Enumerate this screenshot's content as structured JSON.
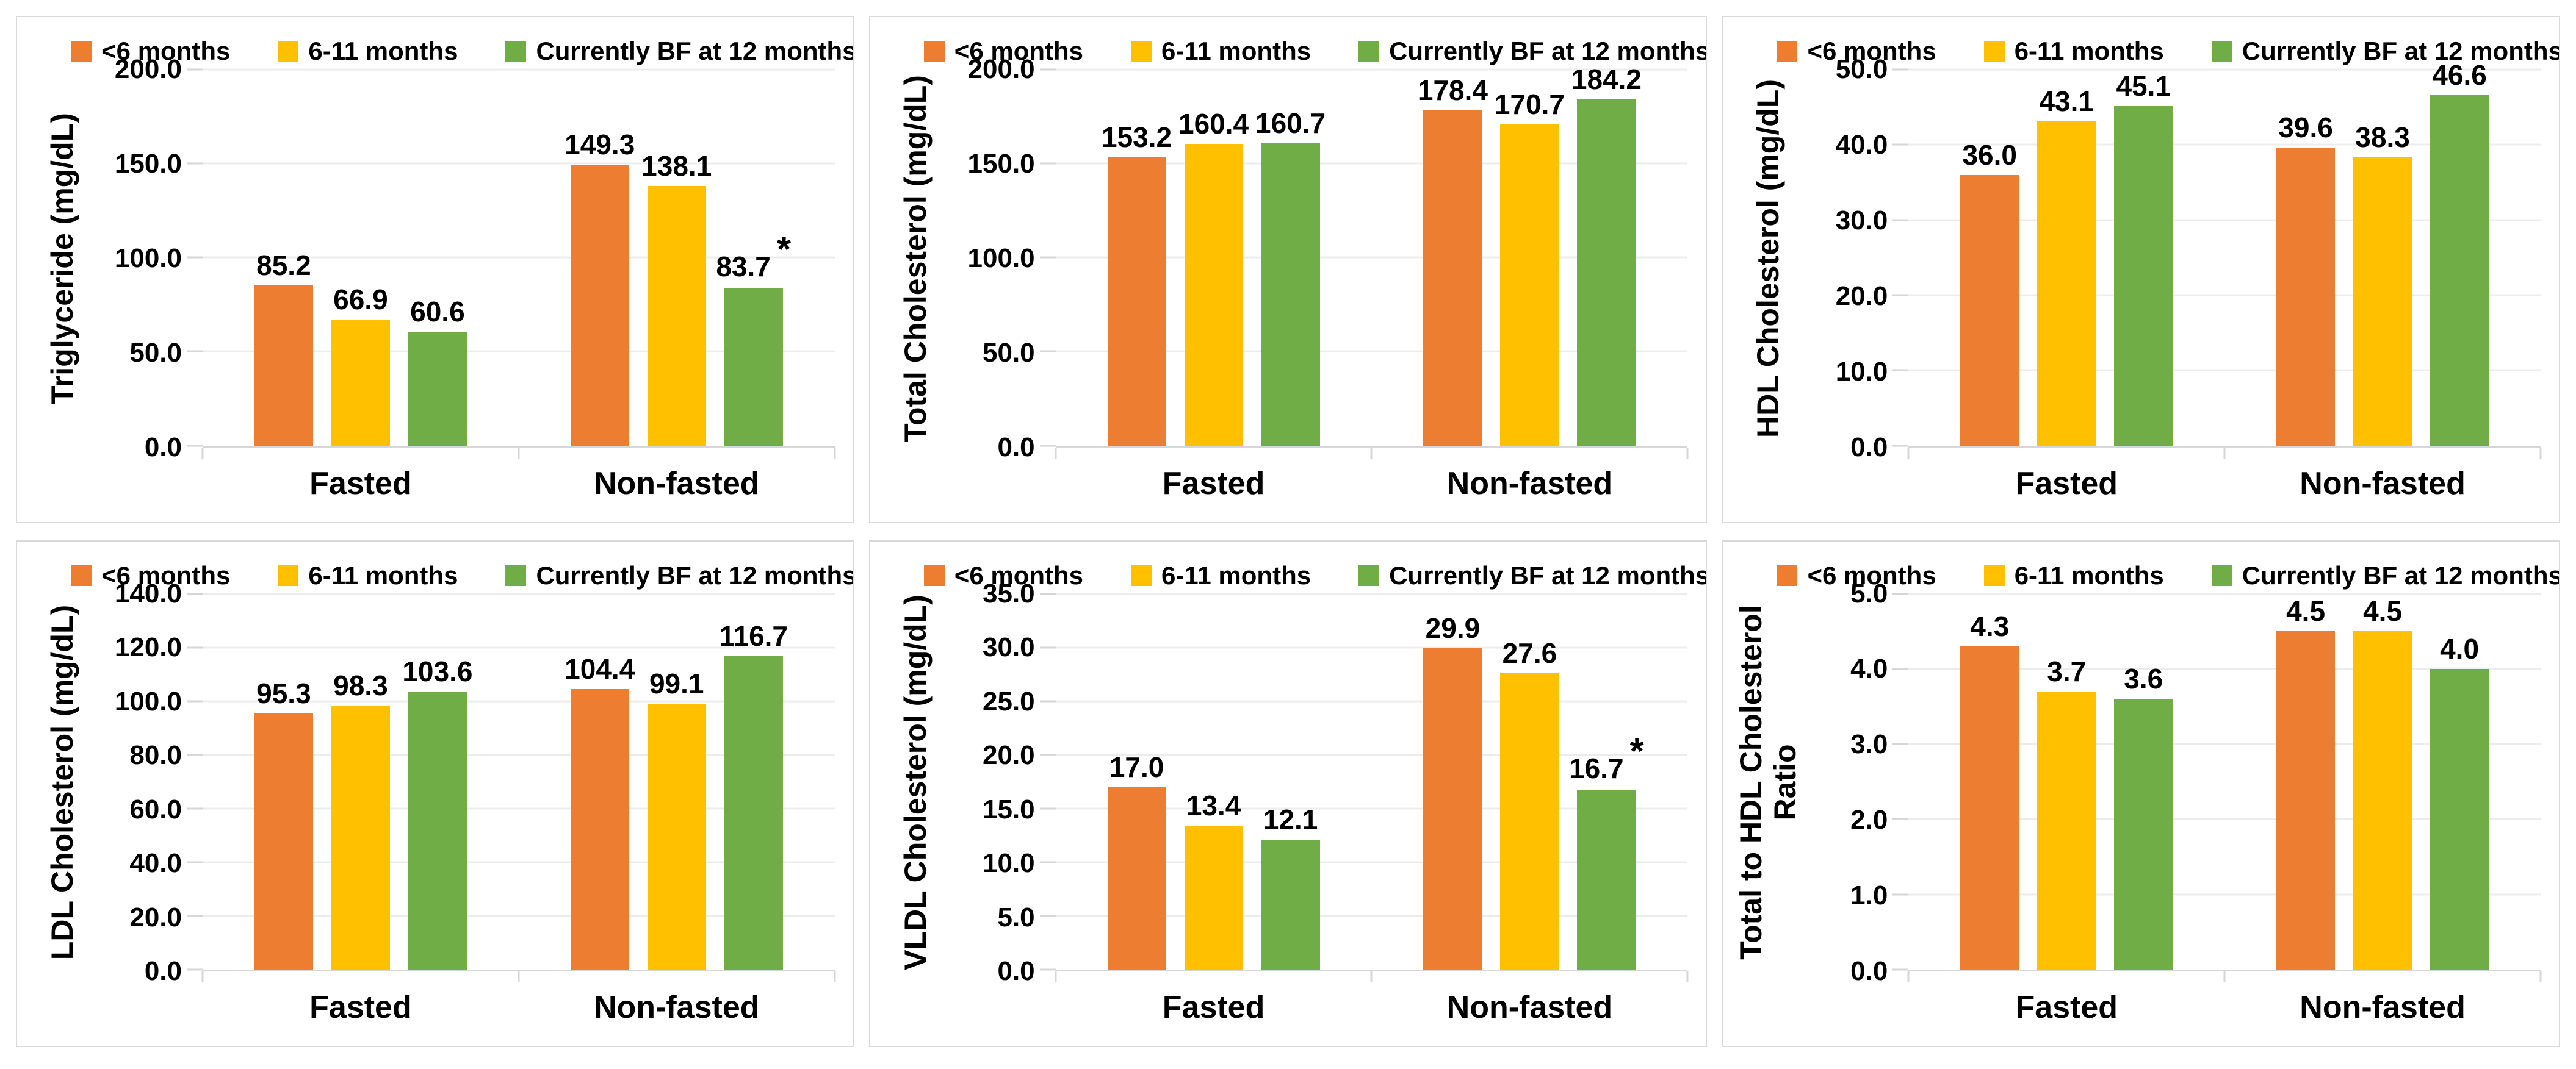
{
  "page": {
    "background": "#FFFFFF"
  },
  "colors": {
    "grid": "#ECECEC",
    "axis": "#D6D6D6",
    "panel_border": "#D9D9D9",
    "text": "#000000"
  },
  "legend": {
    "items": [
      {
        "label": "<6 months",
        "color": "#ED7D31"
      },
      {
        "label": "6-11 months",
        "color": "#FFC000"
      },
      {
        "label": "Currently BF at 12 months",
        "color": "#70AD47"
      }
    ]
  },
  "chart_data": [
    {
      "type": "bar",
      "ylabel_lines": [
        "Triglyceride (mg/dL)"
      ],
      "ylim": [
        0,
        200
      ],
      "ytick_step": 50,
      "yticks": [
        "200.0",
        "150.0",
        "100.0",
        "50.0",
        "0.0"
      ],
      "categories": [
        "Fasted",
        "Non-fasted"
      ],
      "grid": true,
      "legend_position": "top",
      "series": [
        {
          "name": "<6 months",
          "values": [
            85.2,
            149.3
          ],
          "labels": [
            "85.2",
            "149.3"
          ]
        },
        {
          "name": "6-11 months",
          "values": [
            66.9,
            138.1
          ],
          "labels": [
            "66.9",
            "138.1"
          ]
        },
        {
          "name": "Currently BF at 12 months",
          "values": [
            60.6,
            83.7
          ],
          "labels": [
            "60.6",
            "83.7"
          ],
          "stars": [
            "",
            "*"
          ]
        }
      ]
    },
    {
      "type": "bar",
      "ylabel_lines": [
        "Total Cholesterol (mg/dL)"
      ],
      "ylim": [
        0,
        200
      ],
      "ytick_step": 50,
      "yticks": [
        "200.0",
        "150.0",
        "100.0",
        "50.0",
        "0.0"
      ],
      "categories": [
        "Fasted",
        "Non-fasted"
      ],
      "grid": true,
      "legend_position": "top",
      "series": [
        {
          "name": "<6 months",
          "values": [
            153.2,
            178.4
          ],
          "labels": [
            "153.2",
            "178.4"
          ]
        },
        {
          "name": "6-11 months",
          "values": [
            160.4,
            170.7
          ],
          "labels": [
            "160.4",
            "170.7"
          ]
        },
        {
          "name": "Currently BF at 12 months",
          "values": [
            160.7,
            184.2
          ],
          "labels": [
            "160.7",
            "184.2"
          ]
        }
      ]
    },
    {
      "type": "bar",
      "ylabel_lines": [
        "HDL Cholesterol (mg/dL)"
      ],
      "ylim": [
        0,
        50
      ],
      "ytick_step": 10,
      "yticks": [
        "50.0",
        "40.0",
        "30.0",
        "20.0",
        "10.0",
        "0.0"
      ],
      "categories": [
        "Fasted",
        "Non-fasted"
      ],
      "grid": true,
      "legend_position": "top",
      "series": [
        {
          "name": "<6 months",
          "values": [
            36.0,
            39.6
          ],
          "labels": [
            "36.0",
            "39.6"
          ]
        },
        {
          "name": "6-11 months",
          "values": [
            43.1,
            38.3
          ],
          "labels": [
            "43.1",
            "38.3"
          ]
        },
        {
          "name": "Currently BF at 12 months",
          "values": [
            45.1,
            46.6
          ],
          "labels": [
            "45.1",
            "46.6"
          ]
        }
      ]
    },
    {
      "type": "bar",
      "ylabel_lines": [
        "LDL Cholesterol (mg/dL)"
      ],
      "ylim": [
        0,
        140
      ],
      "ytick_step": 20,
      "yticks": [
        "140.0",
        "120.0",
        "100.0",
        "80.0",
        "60.0",
        "40.0",
        "20.0",
        "0.0"
      ],
      "categories": [
        "Fasted",
        "Non-fasted"
      ],
      "grid": true,
      "legend_position": "top",
      "series": [
        {
          "name": "<6 months",
          "values": [
            95.3,
            104.4
          ],
          "labels": [
            "95.3",
            "104.4"
          ]
        },
        {
          "name": "6-11 months",
          "values": [
            98.3,
            99.1
          ],
          "labels": [
            "98.3",
            "99.1"
          ]
        },
        {
          "name": "Currently BF at 12 months",
          "values": [
            103.6,
            116.7
          ],
          "labels": [
            "103.6",
            "116.7"
          ]
        }
      ]
    },
    {
      "type": "bar",
      "ylabel_lines": [
        "VLDL Cholesterol (mg/dL)"
      ],
      "ylim": [
        0,
        35
      ],
      "ytick_step": 5,
      "yticks": [
        "35.0",
        "30.0",
        "25.0",
        "20.0",
        "15.0",
        "10.0",
        "5.0",
        "0.0"
      ],
      "categories": [
        "Fasted",
        "Non-fasted"
      ],
      "grid": true,
      "legend_position": "top",
      "series": [
        {
          "name": "<6 months",
          "values": [
            17.0,
            29.9
          ],
          "labels": [
            "17.0",
            "29.9"
          ]
        },
        {
          "name": "6-11 months",
          "values": [
            13.4,
            27.6
          ],
          "labels": [
            "13.4",
            "27.6"
          ]
        },
        {
          "name": "Currently BF at 12 months",
          "values": [
            12.1,
            16.7
          ],
          "labels": [
            "12.1",
            "16.7"
          ],
          "stars": [
            "",
            "*"
          ]
        }
      ]
    },
    {
      "type": "bar",
      "ylabel_lines": [
        "Total to HDL Cholesterol",
        "Ratio"
      ],
      "ylim": [
        0,
        5
      ],
      "ytick_step": 1,
      "yticks": [
        "5.0",
        "4.0",
        "3.0",
        "2.0",
        "1.0",
        "0.0"
      ],
      "categories": [
        "Fasted",
        "Non-fasted"
      ],
      "grid": true,
      "legend_position": "top",
      "series": [
        {
          "name": "<6 months",
          "values": [
            4.3,
            4.5
          ],
          "labels": [
            "4.3",
            "4.5"
          ]
        },
        {
          "name": "6-11 months",
          "values": [
            3.7,
            4.5
          ],
          "labels": [
            "3.7",
            "4.5"
          ]
        },
        {
          "name": "Currently BF at 12 months",
          "values": [
            3.6,
            4.0
          ],
          "labels": [
            "3.6",
            "4.0"
          ]
        }
      ]
    }
  ]
}
